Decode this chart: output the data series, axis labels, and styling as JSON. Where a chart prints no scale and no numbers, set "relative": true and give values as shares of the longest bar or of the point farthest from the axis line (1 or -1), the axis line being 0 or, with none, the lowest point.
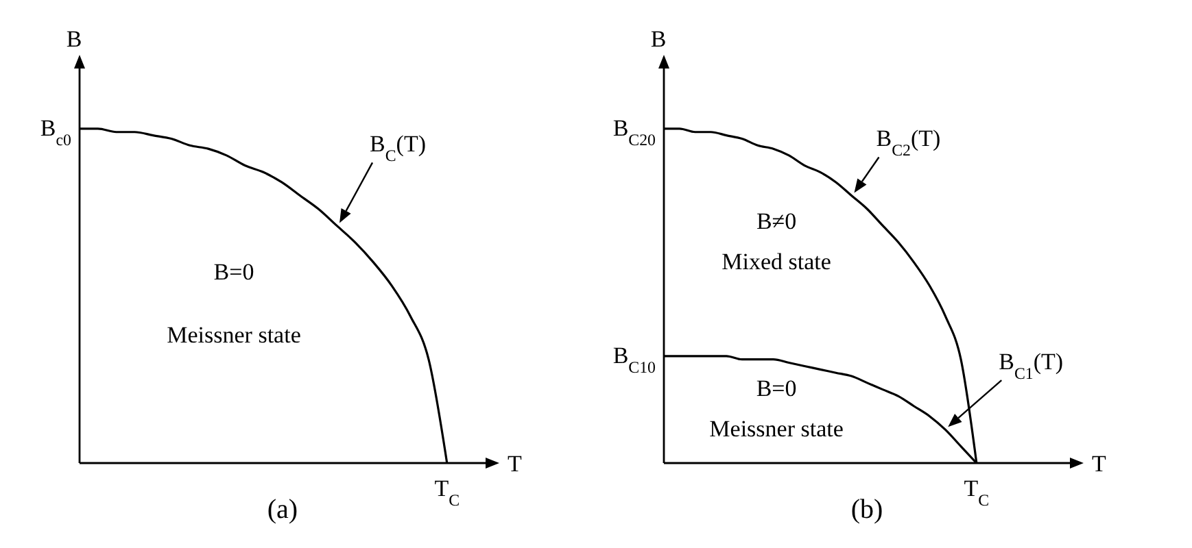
{
  "chart_data": [
    {
      "type": "line",
      "title": "(a)",
      "xlabel": "T",
      "ylabel": "B",
      "relative": true,
      "marker": "none",
      "line_style": "solid",
      "categories": [
        null,
        null,
        null,
        null,
        null,
        null,
        null,
        null,
        null,
        null,
        null,
        null,
        null,
        null,
        null,
        null,
        null,
        null,
        null,
        null,
        null
      ],
      "series": [
        {
          "name": "B$_{C}$(T)",
          "color": "#000000",
          "values": [
            1,
            1,
            0.99,
            0.99,
            0.98,
            0.97,
            0.95,
            0.94,
            0.92,
            0.89,
            0.87,
            0.84,
            0.8,
            0.76,
            0.71,
            0.66,
            0.6,
            0.53,
            0.44,
            0.31,
            0
          ]
        }
      ],
      "annotations": [
        "B$_{c0}$",
        "T$_{C}$",
        "B=0",
        "Meissner state"
      ]
    },
    {
      "type": "line",
      "title": "(b)",
      "xlabel": "T",
      "ylabel": "B",
      "relative": true,
      "marker": "none",
      "line_style": "solid",
      "categories": [
        null,
        null,
        null,
        null,
        null,
        null,
        null,
        null,
        null,
        null,
        null,
        null,
        null,
        null,
        null,
        null,
        null,
        null,
        null,
        null,
        null
      ],
      "series": [
        {
          "name": "B$_{C2}$(T)",
          "color": "#000000",
          "values": [
            1,
            1,
            0.99,
            0.99,
            0.98,
            0.97,
            0.95,
            0.94,
            0.92,
            0.89,
            0.87,
            0.84,
            0.8,
            0.76,
            0.71,
            0.66,
            0.6,
            0.53,
            0.44,
            0.31,
            0
          ]
        },
        {
          "name": "B$_{C1}$(T)",
          "color": "#000000",
          "values": [
            0.32,
            0.32,
            0.32,
            0.32,
            0.32,
            0.31,
            0.31,
            0.31,
            0.3,
            0.29,
            0.28,
            0.27,
            0.26,
            0.24,
            0.22,
            0.2,
            0.17,
            0.14,
            0.1,
            0.05,
            0
          ]
        }
      ],
      "annotations": [
        "B$_{C20}$",
        "B$_{C10}$",
        "T$_{C}$",
        "B≠0",
        "Mixed state",
        "B=0",
        "Meissner state"
      ]
    }
  ]
}
